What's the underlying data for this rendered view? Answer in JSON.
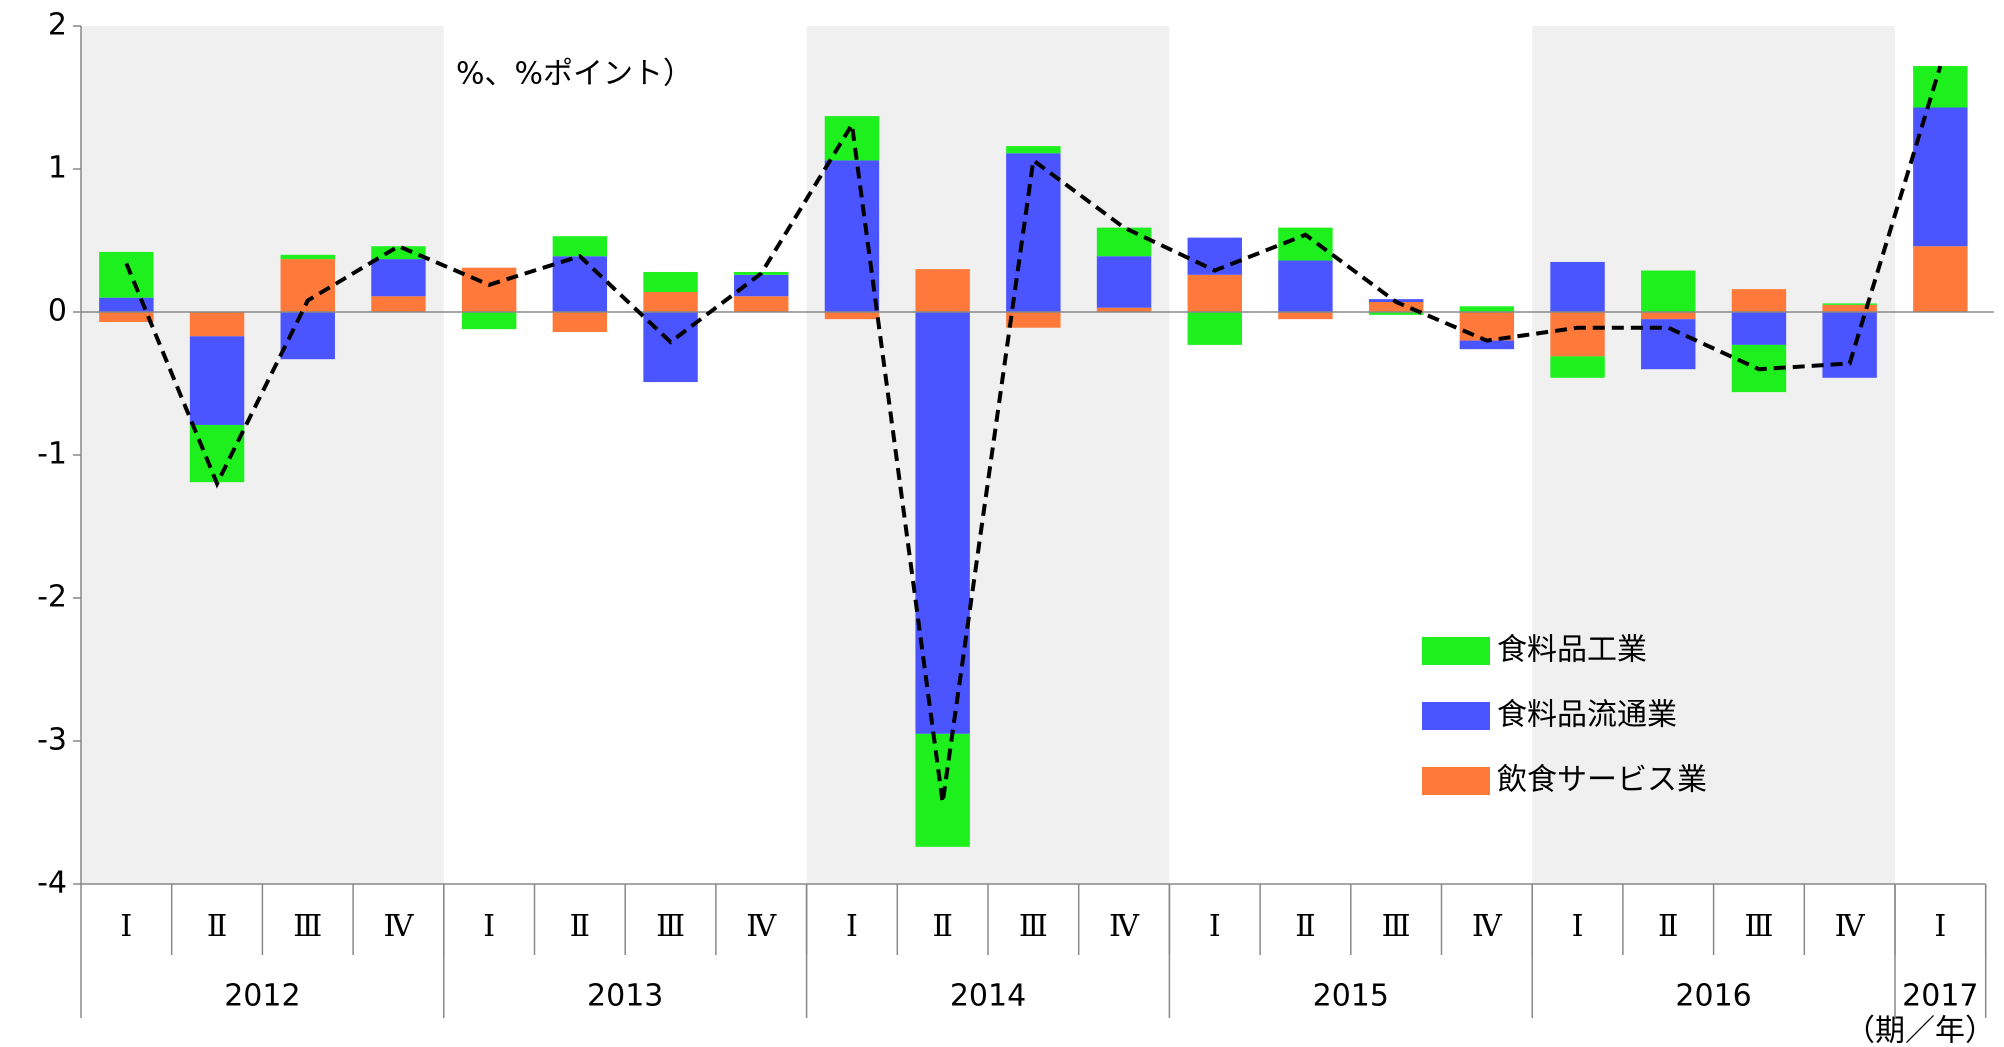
{
  "chart_data": {
    "type": "stacked_bar_line",
    "annotation": "（季節調整済、前期比、%、%ポイント）",
    "x_unit_label": "（期／年）",
    "categories": [
      "Ⅰ",
      "Ⅱ",
      "Ⅲ",
      "Ⅳ",
      "Ⅰ",
      "Ⅱ",
      "Ⅲ",
      "Ⅳ",
      "Ⅰ",
      "Ⅱ",
      "Ⅲ",
      "Ⅳ",
      "Ⅰ",
      "Ⅱ",
      "Ⅲ",
      "Ⅳ",
      "Ⅰ",
      "Ⅱ",
      "Ⅲ",
      "Ⅳ",
      "Ⅰ"
    ],
    "year_groups": [
      {
        "label": "2012",
        "size": 4
      },
      {
        "label": "2013",
        "size": 4
      },
      {
        "label": "2014",
        "size": 4
      },
      {
        "label": "2015",
        "size": 4
      },
      {
        "label": "2016",
        "size": 4
      },
      {
        "label": "2017",
        "size": 1
      }
    ],
    "series": [
      {
        "name": "食料品工業",
        "color": "#1ef01e",
        "values": [
          0.32,
          -0.4,
          0.03,
          0.09,
          -0.12,
          0.14,
          0.14,
          0.02,
          0.31,
          -0.79,
          0.05,
          0.2,
          -0.23,
          0.23,
          -0.02,
          0.04,
          -0.15,
          0.29,
          -0.33,
          0.01,
          0.29
        ]
      },
      {
        "name": "食料品流通業",
        "color": "#4a54ff",
        "values": [
          0.1,
          -0.62,
          -0.33,
          0.26,
          0,
          0.39,
          -0.49,
          0.15,
          1.06,
          -2.95,
          1.11,
          0.36,
          0.26,
          0.36,
          0.02,
          -0.06,
          0.35,
          -0.35,
          -0.23,
          -0.46,
          0.97
        ]
      },
      {
        "name": "飲食サービス業",
        "color": "#ff7a3a",
        "values": [
          -0.07,
          -0.17,
          0.37,
          0.11,
          0.31,
          -0.14,
          0.14,
          0.11,
          -0.05,
          0.3,
          -0.11,
          0.03,
          0.26,
          -0.05,
          0.07,
          -0.2,
          -0.31,
          -0.05,
          0.16,
          0.05,
          0.46
        ]
      }
    ],
    "total": {
      "color": "#000000",
      "values": [
        0.34,
        -1.2,
        0.08,
        0.46,
        0.19,
        0.39,
        -0.21,
        0.27,
        1.31,
        -3.43,
        1.06,
        0.59,
        0.29,
        0.54,
        0.07,
        -0.2,
        -0.11,
        -0.11,
        -0.4,
        -0.36,
        1.72
      ]
    },
    "ylim": [
      -4,
      2
    ],
    "yticks": [
      -4,
      -3,
      -2,
      -1,
      0,
      1,
      2
    ],
    "band_color": "#f0f0f0"
  }
}
